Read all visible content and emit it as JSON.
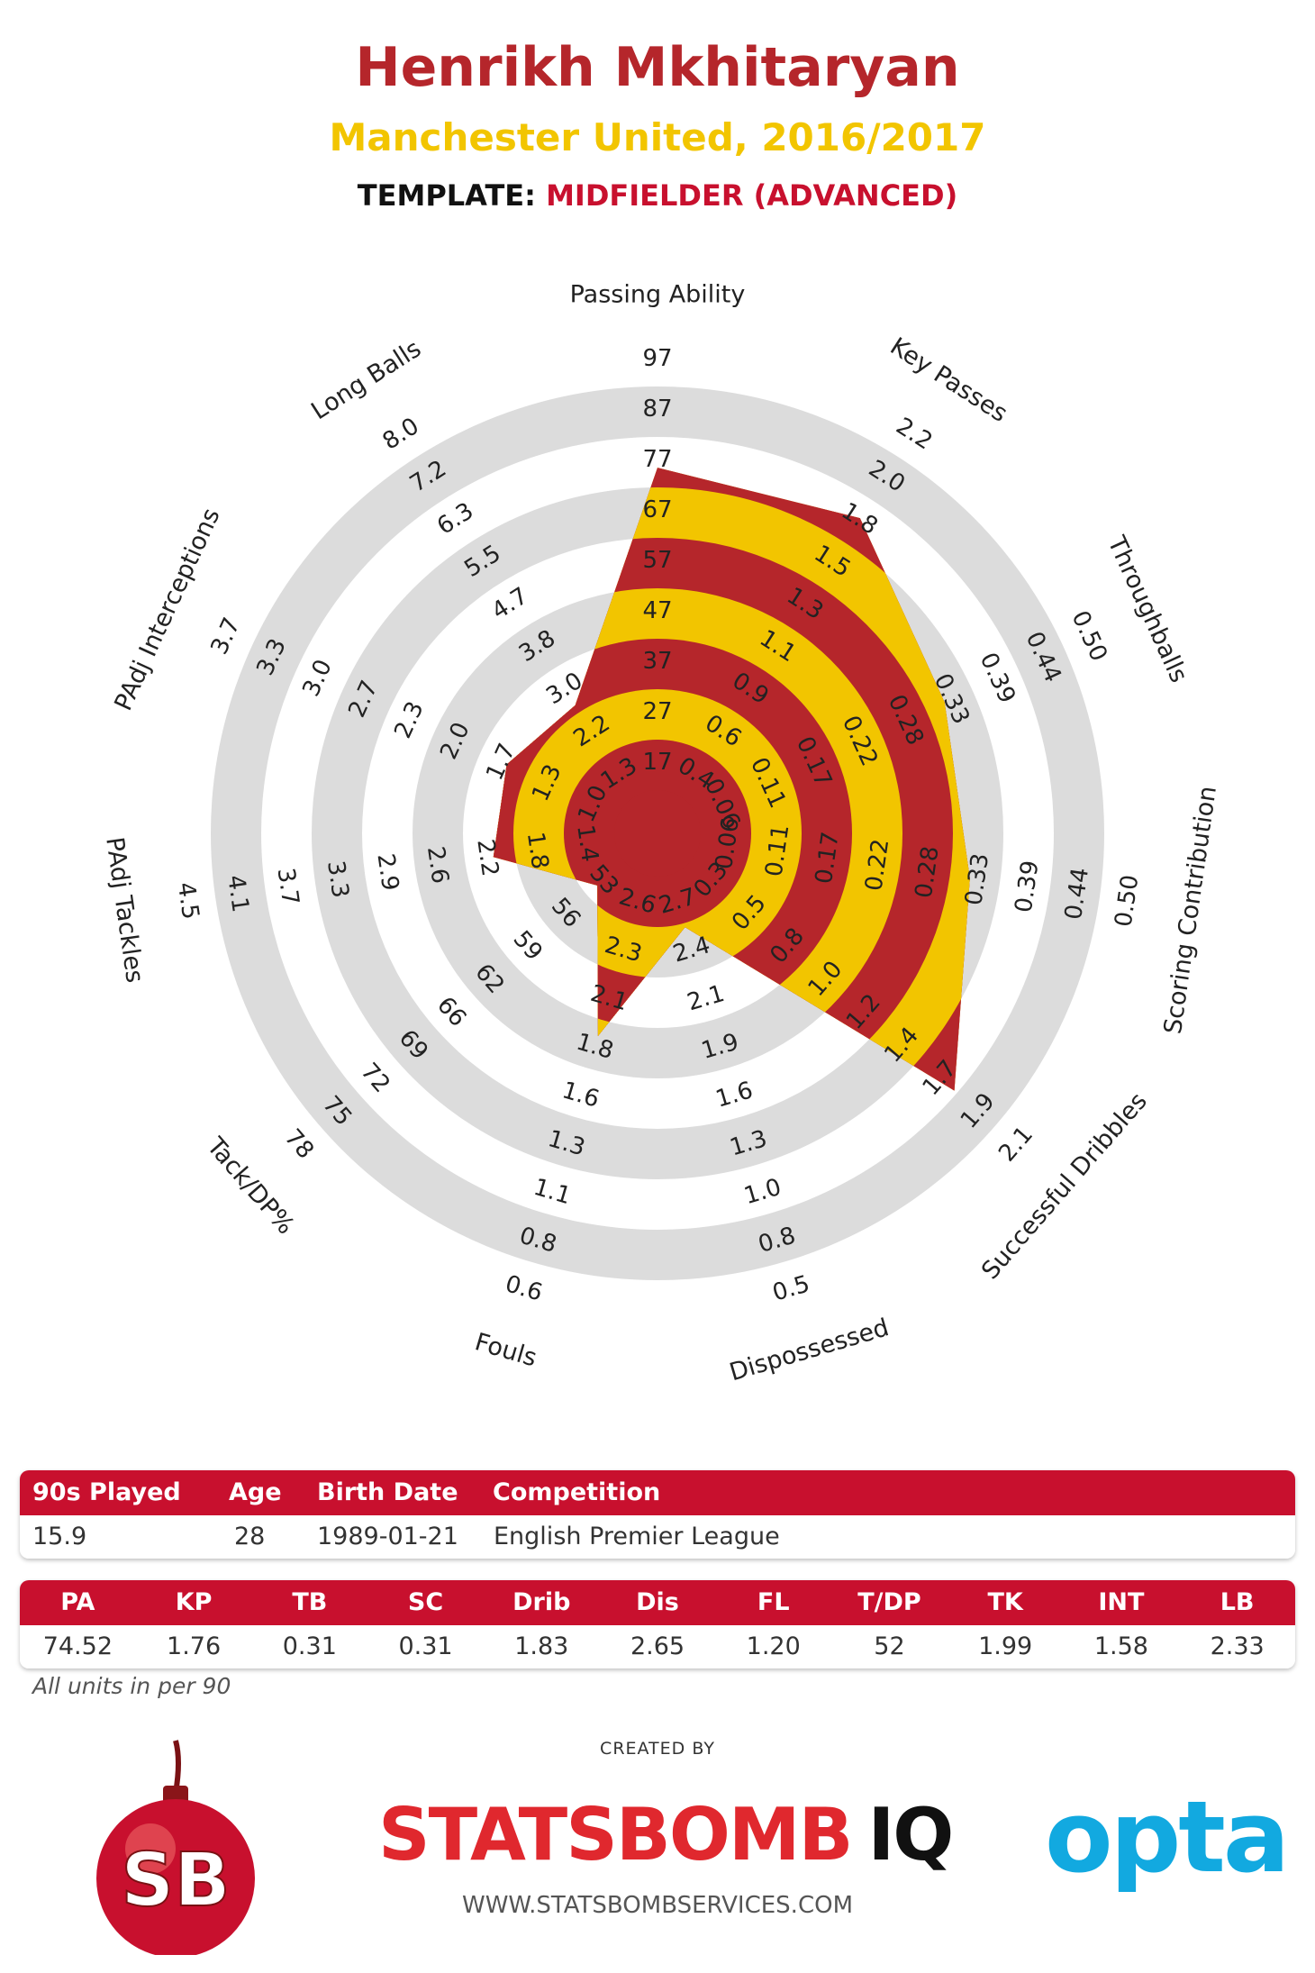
{
  "header": {
    "title": "Henrikh Mkhitaryan",
    "subtitle": "Manchester United, 2016/2017",
    "template_label": "TEMPLATE:",
    "template_value": "MIDFIELDER (ADVANCED)"
  },
  "chart_data": {
    "type": "radar",
    "axes": [
      {
        "label": "Passing Ability",
        "ticks": [
          "17",
          "27",
          "37",
          "47",
          "57",
          "67",
          "77",
          "87",
          "97"
        ],
        "value": 74.52
      },
      {
        "label": "Key Passes",
        "ticks": [
          "0.4",
          "0.6",
          "0.9",
          "1.1",
          "1.3",
          "1.5",
          "1.8",
          "2.0",
          "2.2"
        ],
        "value": 1.76
      },
      {
        "label": "Throughballs",
        "ticks": [
          "0.06",
          "0.11",
          "0.17",
          "0.22",
          "0.28",
          "0.33",
          "0.39",
          "0.44",
          "0.50"
        ],
        "value": 0.31
      },
      {
        "label": "Scoring Contribution",
        "ticks": [
          "0.06",
          "0.11",
          "0.17",
          "0.22",
          "0.28",
          "0.33",
          "0.39",
          "0.44",
          "0.50"
        ],
        "value": 0.31
      },
      {
        "label": "Successful Dribbles",
        "ticks": [
          "0.3",
          "0.5",
          "0.8",
          "1.0",
          "1.2",
          "1.4",
          "1.7",
          "1.9",
          "2.1"
        ],
        "value": 1.83
      },
      {
        "label": "Dispossessed",
        "ticks": [
          "2.7",
          "2.4",
          "2.1",
          "1.9",
          "1.6",
          "1.3",
          "1.0",
          "0.8",
          "0.5"
        ],
        "value": 2.65
      },
      {
        "label": "Fouls",
        "ticks": [
          "2.6",
          "2.3",
          "2.1",
          "1.8",
          "1.6",
          "1.3",
          "1.1",
          "0.8",
          "0.6"
        ],
        "value": 1.2
      },
      {
        "label": "Tack/DP%",
        "ticks": [
          "53",
          "56",
          "59",
          "62",
          "66",
          "69",
          "72",
          "75",
          "78"
        ],
        "value": 52
      },
      {
        "label": "PAdj Tackles",
        "ticks": [
          "1.4",
          "1.8",
          "2.2",
          "2.6",
          "2.9",
          "3.3",
          "3.7",
          "4.1",
          "4.5"
        ],
        "value": 1.99
      },
      {
        "label": "PAdj Interceptions",
        "ticks": [
          "1.0",
          "1.3",
          "1.7",
          "2.0",
          "2.3",
          "2.7",
          "3.0",
          "3.3",
          "3.7"
        ],
        "value": 1.58
      },
      {
        "label": "Long Balls",
        "ticks": [
          "1.3",
          "2.2",
          "3.0",
          "3.8",
          "4.7",
          "5.5",
          "6.3",
          "7.2",
          "8.0"
        ],
        "value": 2.33
      }
    ],
    "normalized_radius": [
      0.71,
      0.73,
      0.6,
      0.6,
      0.77,
      0.12,
      0.37,
      0.08,
      0.27,
      0.27,
      0.24
    ]
  },
  "info_table": {
    "headers": [
      "90s Played",
      "Age",
      "Birth Date",
      "Competition"
    ],
    "values": [
      "15.9",
      "28",
      "1989-01-21",
      "English Premier League"
    ]
  },
  "stats_table": {
    "headers": [
      "PA",
      "KP",
      "TB",
      "SC",
      "Drib",
      "Dis",
      "FL",
      "T/DP",
      "TK",
      "INT",
      "LB"
    ],
    "values": [
      "74.52",
      "1.76",
      "0.31",
      "0.31",
      "1.83",
      "2.65",
      "1.20",
      "52",
      "1.99",
      "1.58",
      "2.33"
    ]
  },
  "note": "All units in per 90",
  "footer": {
    "created_by": "CREATED BY",
    "brand_left": "STATSBOMB",
    "brand_right": "IQ",
    "url": "WWW.STATSBOMBSERVICES.COM",
    "partner": "opta",
    "logo_text": "SB"
  },
  "colors": {
    "red": "#b5262b",
    "yellow": "#f2c500",
    "ring_grey": "#dcdcdc",
    "header_red": "#c8102e",
    "opta_blue": "#12a9e0"
  }
}
